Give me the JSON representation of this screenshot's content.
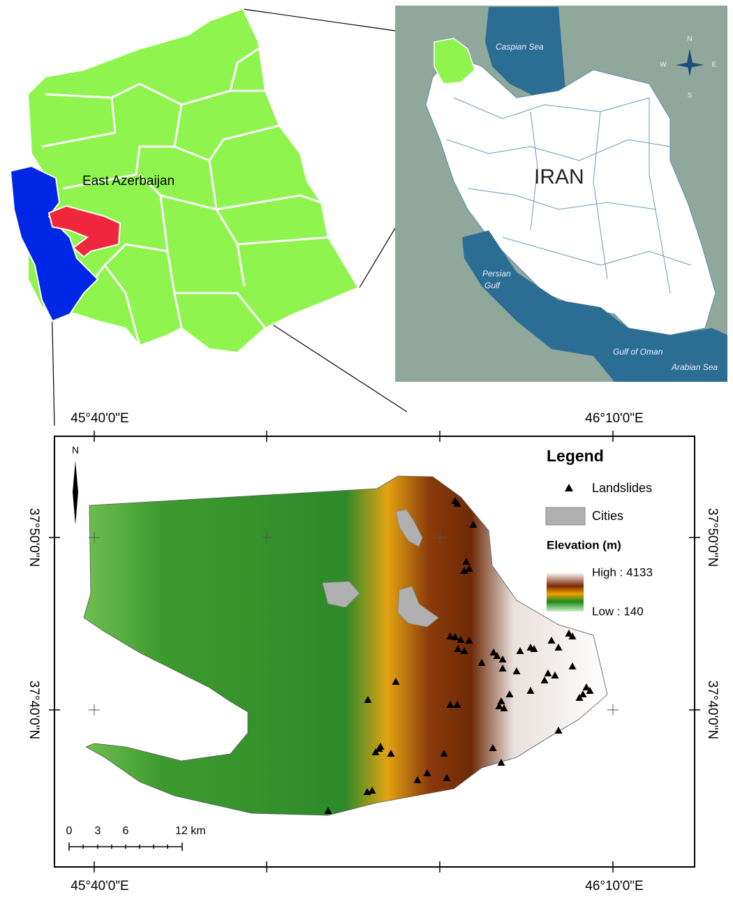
{
  "inset_province": {
    "label": "East Azerbaijan"
  },
  "inset_country": {
    "title": "IRAN",
    "seas": {
      "caspian": "Caspian Sea",
      "persian": [
        "Persian",
        "Gulf"
      ],
      "oman": "Gulf of Oman",
      "arabian": "Arabian Sea"
    },
    "compass": {
      "n": "N",
      "w": "W",
      "e": "E",
      "s": "S"
    }
  },
  "main_map": {
    "x_labels": [
      "45°40'0\"E",
      "46°10'0\"E"
    ],
    "y_labels": [
      "37°50'0\"N",
      "37°40'0\"N"
    ],
    "north": "N",
    "legend": {
      "title": "Legend",
      "items": [
        "Landslides",
        "Cities"
      ],
      "elevation_title": "Elevation (m)",
      "high": "High : 4133",
      "low": "Low : 140"
    },
    "scale": [
      "0",
      "3",
      "6",
      "12 km"
    ]
  }
}
